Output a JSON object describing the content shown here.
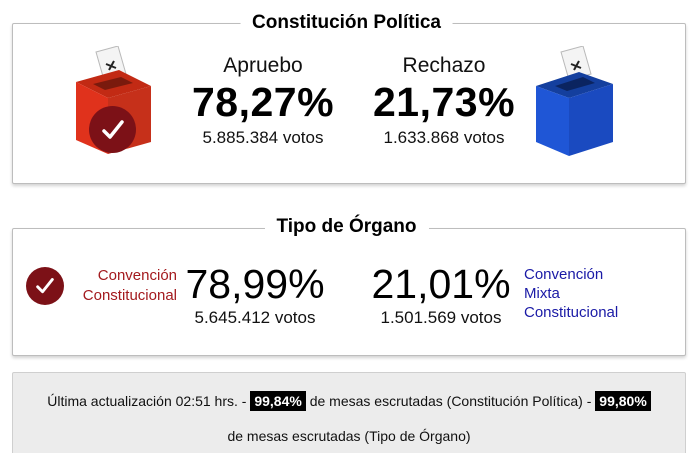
{
  "constitucion": {
    "title": "Constitución Política",
    "apruebo": {
      "label": "Apruebo",
      "percent": "78,27%",
      "votes": "5.885.384 votos"
    },
    "rechazo": {
      "label": "Rechazo",
      "percent": "21,73%",
      "votes": "1.633.868 votos"
    },
    "winner": "apruebo"
  },
  "organo": {
    "title": "Tipo de Órgano",
    "convencion_constitucional": {
      "label_line1": "Convención",
      "label_line2": "Constitucional",
      "percent": "78,99%",
      "votes": "5.645.412 votos"
    },
    "convencion_mixta": {
      "label_line1": "Convención",
      "label_line2": "Mixta",
      "label_line3": "Constitucional",
      "percent": "21,01%",
      "votes": "1.501.569 votos"
    },
    "winner": "convencion_constitucional"
  },
  "footer": {
    "prefix": "Última actualización 02:51 hrs. -",
    "badge1": "99,84%",
    "middle": "de mesas escrutadas (Constitución Política) -",
    "badge2": "99,80%",
    "suffix": "de mesas escrutadas (Tipo de Órgano)"
  },
  "colors": {
    "apruebo_red": "#e0321c",
    "rechazo_blue": "#1f56d6",
    "check_dark_red": "#7c1117",
    "convencion_label_red": "#a31a1e",
    "mixta_label_blue": "#1a1aa6"
  },
  "icons": [
    "ballot-box-red-icon",
    "ballot-box-blue-icon",
    "checkmark-icon"
  ]
}
